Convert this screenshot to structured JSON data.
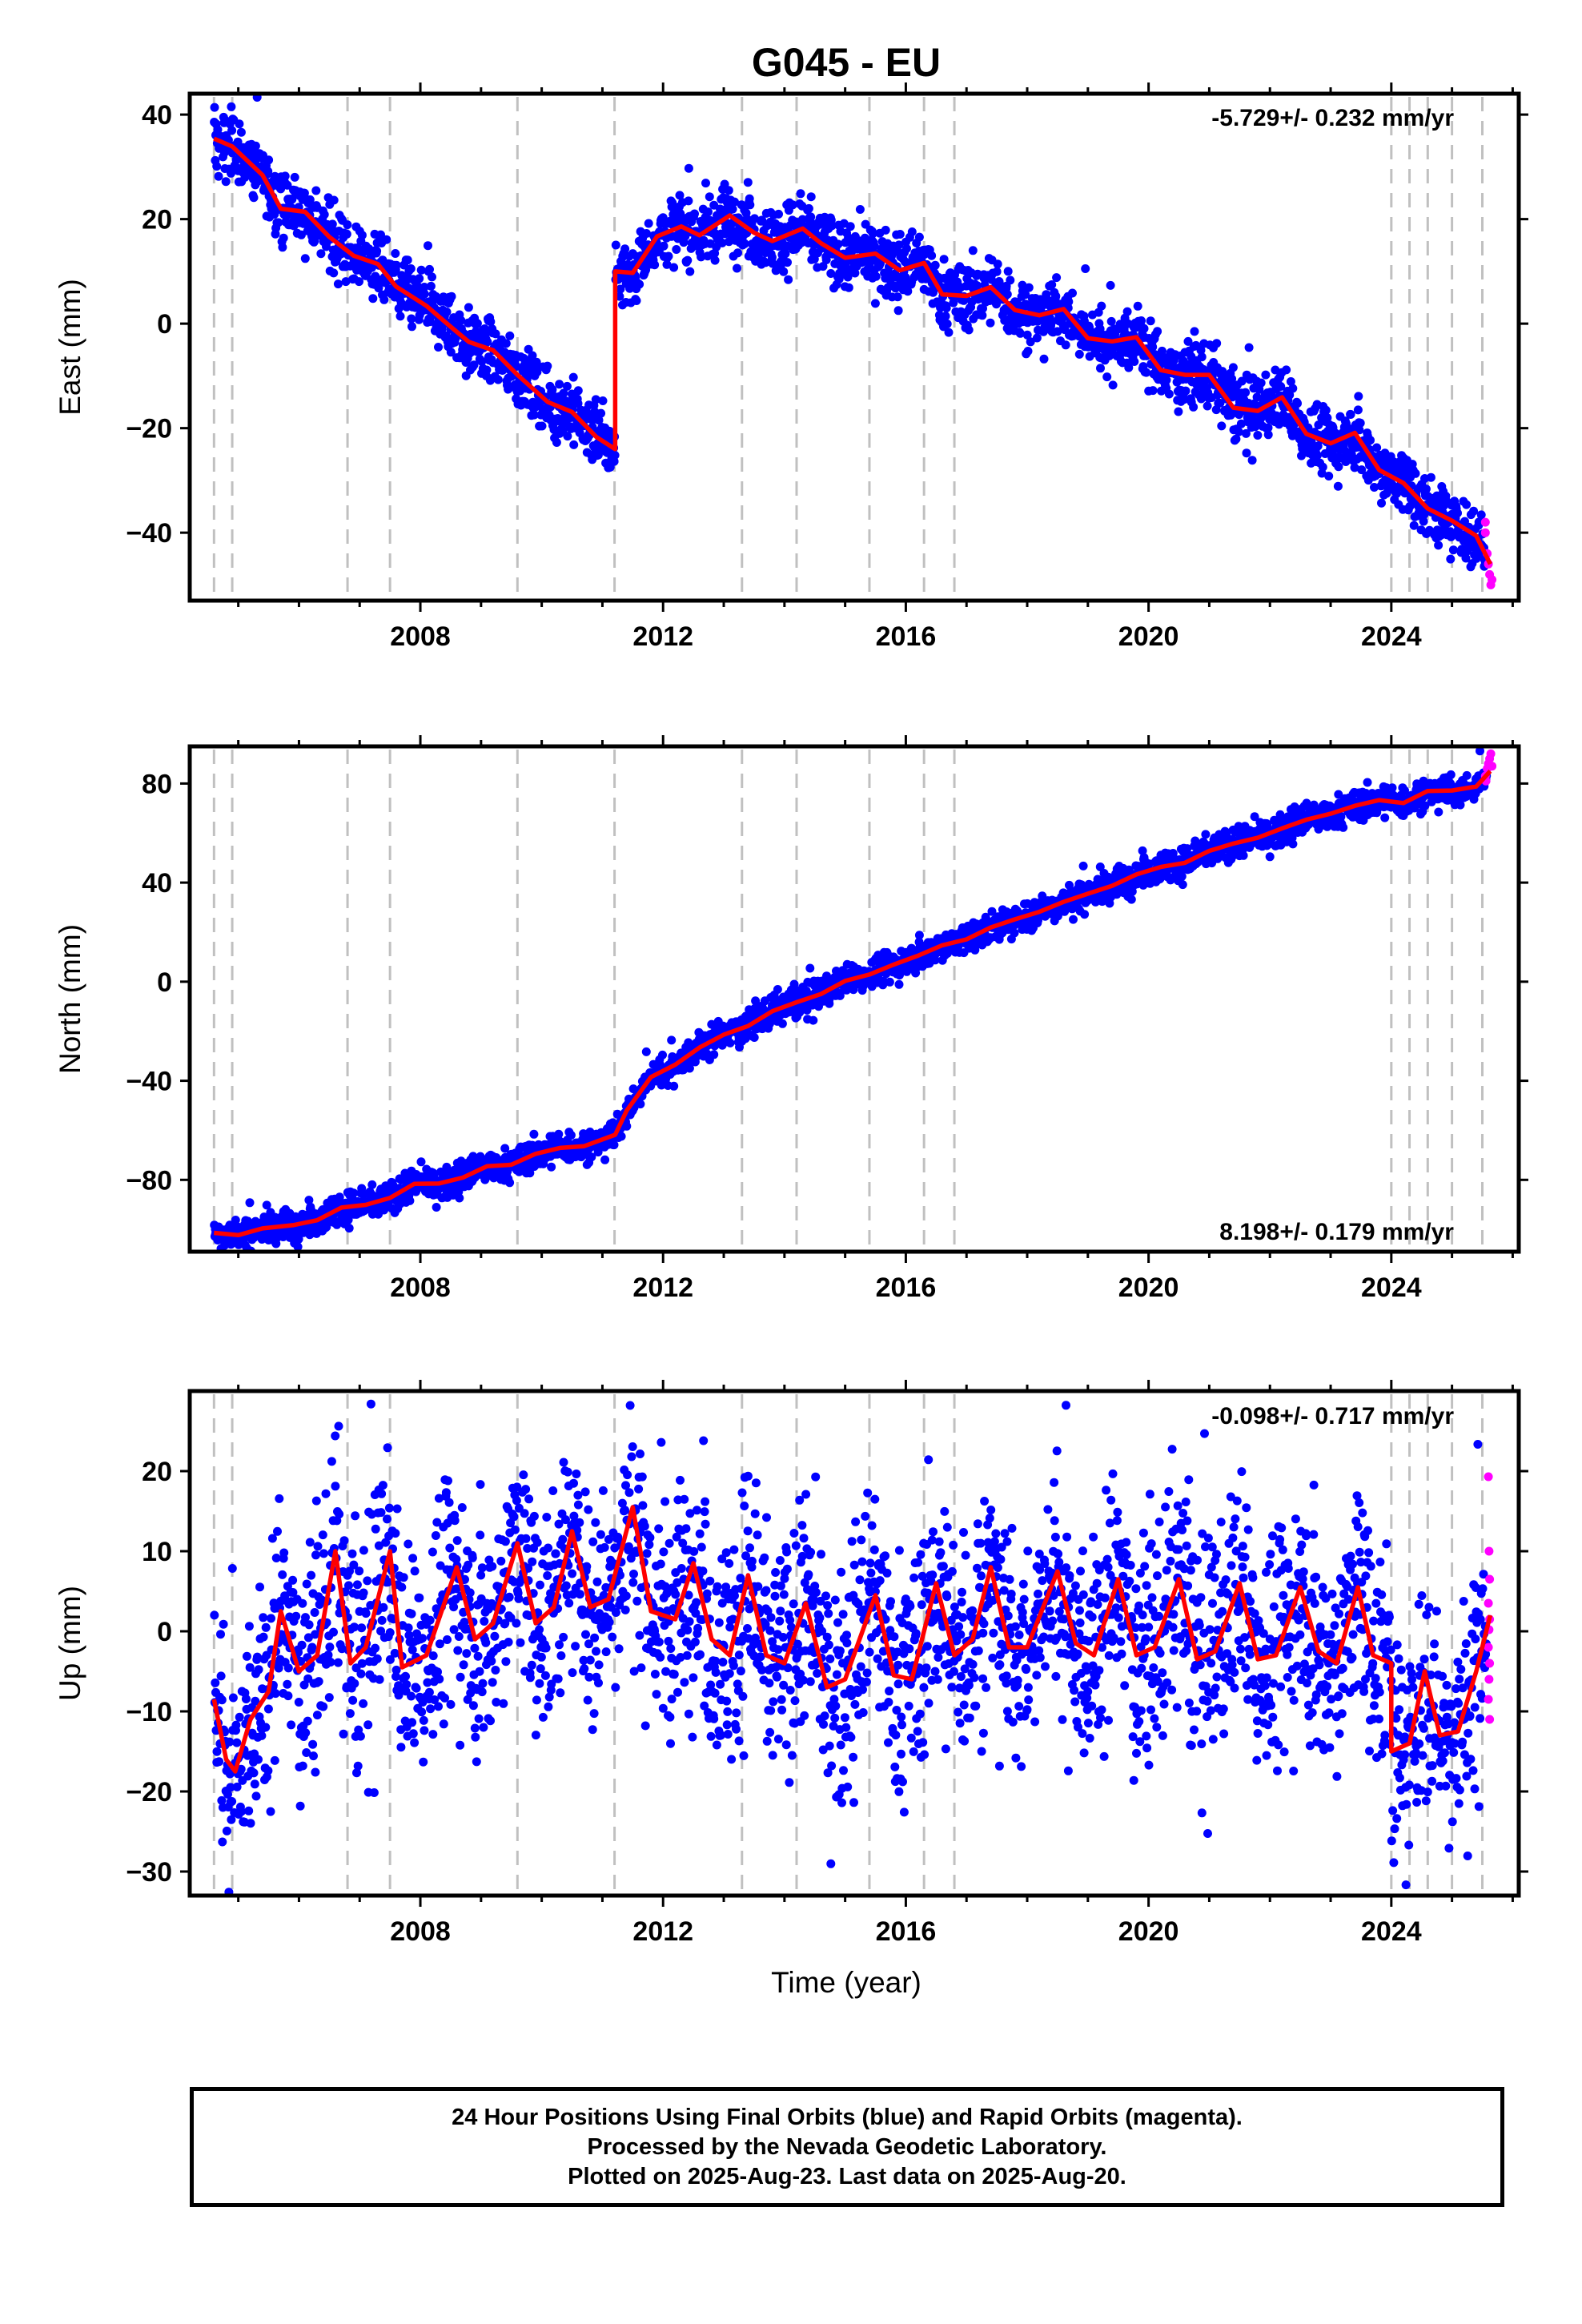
{
  "title": "G045 - EU",
  "x_axis": {
    "label": "Time (year)",
    "ticks": [
      "2008",
      "2012",
      "2016",
      "2020",
      "2024"
    ]
  },
  "colors": {
    "final": "#0000ff",
    "rapid": "#ff00ff",
    "model": "#ff0000",
    "breaks": "#c0c0c0"
  },
  "footer": {
    "line1": "24 Hour Positions Using Final Orbits (blue) and Rapid Orbits (magenta).",
    "line2": "Processed by the Nevada Geodetic Laboratory.",
    "line3": "Plotted on 2025-Aug-23. Last data on 2025-Aug-20."
  },
  "chart_data": [
    {
      "type": "scatter",
      "name": "east",
      "ylabel": "East (mm)",
      "rate_text": "-5.729+/- 0.232 mm/yr",
      "xlim": [
        2004.2,
        2026.1
      ],
      "ylim": [
        -53,
        44
      ],
      "yticks": [
        -40,
        -20,
        0,
        20,
        40
      ],
      "break_epochs": [
        2004.6,
        2004.9,
        2006.8,
        2007.5,
        2009.6,
        2011.2,
        2013.3,
        2014.2,
        2015.4,
        2016.3,
        2016.8,
        2024.0,
        2024.3,
        2024.6,
        2025.0,
        2025.5
      ],
      "model_knots": [
        [
          2004.6,
          35.4
        ],
        [
          2004.9,
          33.9
        ],
        [
          2005.4,
          28.4
        ],
        [
          2005.7,
          22.0
        ],
        [
          2006.1,
          21.4
        ],
        [
          2006.5,
          16.6
        ],
        [
          2006.9,
          13.0
        ],
        [
          2007.3,
          11.4
        ],
        [
          2007.6,
          7.1
        ],
        [
          2008.1,
          3.4
        ],
        [
          2008.5,
          -0.6
        ],
        [
          2008.8,
          -3.5
        ],
        [
          2009.2,
          -5.1
        ],
        [
          2009.6,
          -9.8
        ],
        [
          2010.1,
          -15.0
        ],
        [
          2010.5,
          -16.9
        ],
        [
          2010.9,
          -21.7
        ],
        [
          2011.21,
          -24.0
        ],
        [
          2011.21,
          10.0
        ],
        [
          2011.5,
          9.7
        ],
        [
          2011.9,
          16.7
        ],
        [
          2012.3,
          18.6
        ],
        [
          2012.6,
          16.9
        ],
        [
          2013.1,
          20.7
        ],
        [
          2013.5,
          17.4
        ],
        [
          2013.8,
          15.8
        ],
        [
          2014.3,
          18.2
        ],
        [
          2014.6,
          15.4
        ],
        [
          2015.0,
          12.6
        ],
        [
          2015.5,
          13.4
        ],
        [
          2015.9,
          10.2
        ],
        [
          2016.3,
          11.6
        ],
        [
          2016.6,
          5.6
        ],
        [
          2017.0,
          5.3
        ],
        [
          2017.4,
          7.0
        ],
        [
          2017.8,
          2.6
        ],
        [
          2018.2,
          1.6
        ],
        [
          2018.6,
          2.8
        ],
        [
          2019.0,
          -2.8
        ],
        [
          2019.4,
          -3.4
        ],
        [
          2019.8,
          -2.6
        ],
        [
          2020.2,
          -8.9
        ],
        [
          2020.6,
          -9.8
        ],
        [
          2021.0,
          -9.8
        ],
        [
          2021.4,
          -16.1
        ],
        [
          2021.8,
          -16.7
        ],
        [
          2022.2,
          -14.1
        ],
        [
          2022.6,
          -21.1
        ],
        [
          2023.0,
          -22.9
        ],
        [
          2023.4,
          -20.9
        ],
        [
          2023.8,
          -28.0
        ],
        [
          2024.2,
          -30.5
        ],
        [
          2024.6,
          -35.4
        ],
        [
          2025.0,
          -37.7
        ],
        [
          2025.4,
          -40.6
        ],
        [
          2025.63,
          -46.0
        ]
      ],
      "scatter_halfwidth_mm": 3.0,
      "rapid_points": [
        [
          2025.55,
          -40
        ],
        [
          2025.58,
          -44
        ],
        [
          2025.6,
          -46
        ],
        [
          2025.62,
          -48
        ],
        [
          2025.64,
          -50
        ],
        [
          2025.66,
          -49
        ],
        [
          2025.55,
          -38
        ]
      ]
    },
    {
      "type": "scatter",
      "name": "north",
      "ylabel": "North (mm)",
      "rate_text": "8.198+/- 0.179 mm/yr",
      "xlim": [
        2004.2,
        2026.1
      ],
      "ylim": [
        -109,
        95
      ],
      "yticks": [
        -80,
        -40,
        0,
        40,
        80
      ],
      "break_epochs": [
        2004.6,
        2004.9,
        2006.8,
        2007.5,
        2009.6,
        2011.2,
        2013.3,
        2014.2,
        2015.4,
        2016.3,
        2016.8,
        2024.0,
        2024.3,
        2024.6,
        2025.0,
        2025.5
      ],
      "model_knots": [
        [
          2004.6,
          -101.4
        ],
        [
          2005.0,
          -102.3
        ],
        [
          2005.4,
          -99.6
        ],
        [
          2005.9,
          -98.3
        ],
        [
          2006.3,
          -96.3
        ],
        [
          2006.7,
          -91.2
        ],
        [
          2007.1,
          -90.1
        ],
        [
          2007.5,
          -87.3
        ],
        [
          2007.9,
          -81.6
        ],
        [
          2008.3,
          -81.5
        ],
        [
          2008.7,
          -79.1
        ],
        [
          2009.1,
          -74.5
        ],
        [
          2009.5,
          -73.9
        ],
        [
          2009.9,
          -69.5
        ],
        [
          2010.3,
          -67.1
        ],
        [
          2010.7,
          -66.4
        ],
        [
          2011.21,
          -61.8
        ],
        [
          2011.4,
          -52.0
        ],
        [
          2011.8,
          -38.5
        ],
        [
          2012.2,
          -33.5
        ],
        [
          2012.6,
          -26.6
        ],
        [
          2013.0,
          -21.4
        ],
        [
          2013.4,
          -17.9
        ],
        [
          2013.8,
          -11.9
        ],
        [
          2014.2,
          -8.3
        ],
        [
          2014.6,
          -5.0
        ],
        [
          2015.0,
          0.3
        ],
        [
          2015.4,
          2.9
        ],
        [
          2015.8,
          6.9
        ],
        [
          2016.2,
          10.5
        ],
        [
          2016.6,
          14.7
        ],
        [
          2017.0,
          17.1
        ],
        [
          2017.4,
          21.9
        ],
        [
          2017.8,
          25.2
        ],
        [
          2018.2,
          28.2
        ],
        [
          2018.6,
          32.2
        ],
        [
          2019.0,
          35.5
        ],
        [
          2019.4,
          38.7
        ],
        [
          2019.8,
          43.3
        ],
        [
          2020.2,
          46.3
        ],
        [
          2020.6,
          48.0
        ],
        [
          2021.0,
          52.8
        ],
        [
          2021.4,
          55.8
        ],
        [
          2021.8,
          58.1
        ],
        [
          2022.2,
          61.9
        ],
        [
          2022.6,
          65.4
        ],
        [
          2023.0,
          67.8
        ],
        [
          2023.4,
          71.0
        ],
        [
          2023.8,
          73.3
        ],
        [
          2024.2,
          72.1
        ],
        [
          2024.6,
          77.0
        ],
        [
          2025.0,
          77.2
        ],
        [
          2025.4,
          78.8
        ],
        [
          2025.63,
          85.0
        ]
      ],
      "scatter_halfwidth_mm": 3.0,
      "rapid_points": [
        [
          2025.55,
          83
        ],
        [
          2025.58,
          86
        ],
        [
          2025.6,
          88
        ],
        [
          2025.62,
          90
        ],
        [
          2025.64,
          92
        ],
        [
          2025.66,
          87
        ],
        [
          2025.56,
          81
        ]
      ]
    },
    {
      "type": "scatter",
      "name": "up",
      "ylabel": "Up (mm)",
      "rate_text": "-0.098+/- 0.717 mm/yr",
      "xlim": [
        2004.2,
        2026.1
      ],
      "ylim": [
        -33,
        30
      ],
      "yticks": [
        -30,
        -20,
        -10,
        0,
        10,
        20
      ],
      "break_epochs": [
        2004.6,
        2004.9,
        2006.8,
        2007.5,
        2009.6,
        2011.2,
        2013.3,
        2014.2,
        2015.4,
        2016.3,
        2016.8,
        2024.0,
        2024.3,
        2024.6,
        2025.0,
        2025.5
      ],
      "model_knots": [
        [
          2004.6,
          -8.5
        ],
        [
          2004.8,
          -16.0
        ],
        [
          2004.95,
          -17.5
        ],
        [
          2005.2,
          -11.0
        ],
        [
          2005.5,
          -7.5
        ],
        [
          2005.7,
          2.5
        ],
        [
          2006.0,
          -5.0
        ],
        [
          2006.3,
          -3.0
        ],
        [
          2006.6,
          10.0
        ],
        [
          2006.85,
          -4.0
        ],
        [
          2007.1,
          -2.0
        ],
        [
          2007.5,
          10.0
        ],
        [
          2007.7,
          -4.5
        ],
        [
          2008.1,
          -3.0
        ],
        [
          2008.6,
          8.0
        ],
        [
          2008.9,
          -1.0
        ],
        [
          2009.2,
          1.0
        ],
        [
          2009.6,
          11.0
        ],
        [
          2009.9,
          1.0
        ],
        [
          2010.2,
          3.0
        ],
        [
          2010.5,
          12.5
        ],
        [
          2010.8,
          3.0
        ],
        [
          2011.1,
          4.0
        ],
        [
          2011.5,
          15.5
        ],
        [
          2011.8,
          2.5
        ],
        [
          2012.2,
          1.5
        ],
        [
          2012.5,
          8.5
        ],
        [
          2012.8,
          -1.0
        ],
        [
          2013.1,
          -3.0
        ],
        [
          2013.4,
          7.0
        ],
        [
          2013.7,
          -3.0
        ],
        [
          2014.0,
          -4.0
        ],
        [
          2014.35,
          3.5
        ],
        [
          2014.7,
          -7.0
        ],
        [
          2015.0,
          -6.0
        ],
        [
          2015.5,
          4.5
        ],
        [
          2015.8,
          -5.5
        ],
        [
          2016.1,
          -6.0
        ],
        [
          2016.5,
          6.0
        ],
        [
          2016.8,
          -3.0
        ],
        [
          2017.1,
          -1.0
        ],
        [
          2017.4,
          8.0
        ],
        [
          2017.7,
          -2.0
        ],
        [
          2018.0,
          -2.0
        ],
        [
          2018.5,
          7.5
        ],
        [
          2018.8,
          -1.5
        ],
        [
          2019.1,
          -3.0
        ],
        [
          2019.5,
          6.5
        ],
        [
          2019.8,
          -3.0
        ],
        [
          2020.1,
          -2.0
        ],
        [
          2020.5,
          6.5
        ],
        [
          2020.8,
          -3.5
        ],
        [
          2021.1,
          -2.5
        ],
        [
          2021.5,
          6.0
        ],
        [
          2021.8,
          -3.5
        ],
        [
          2022.1,
          -3.0
        ],
        [
          2022.5,
          5.5
        ],
        [
          2022.8,
          -2.5
        ],
        [
          2023.1,
          -4.0
        ],
        [
          2023.45,
          5.5
        ],
        [
          2023.7,
          -3.0
        ],
        [
          2024.0,
          -4.0
        ],
        [
          2024.0,
          -15.0
        ],
        [
          2024.3,
          -14.0
        ],
        [
          2024.55,
          -5.0
        ],
        [
          2024.8,
          -13.0
        ],
        [
          2025.1,
          -12.5
        ],
        [
          2025.4,
          -5.0
        ],
        [
          2025.63,
          2.0
        ]
      ],
      "scatter_halfwidth_mm": 7.0,
      "rapid_points": [
        [
          2025.6,
          19.3
        ],
        [
          2025.61,
          10.0
        ],
        [
          2025.62,
          6.5
        ],
        [
          2025.6,
          3.5
        ],
        [
          2025.62,
          1.5
        ],
        [
          2025.61,
          0.2
        ],
        [
          2025.6,
          -2.0
        ],
        [
          2025.62,
          -4.0
        ],
        [
          2025.61,
          -6.0
        ],
        [
          2025.6,
          -8.5
        ],
        [
          2025.62,
          -11.0
        ]
      ]
    }
  ]
}
